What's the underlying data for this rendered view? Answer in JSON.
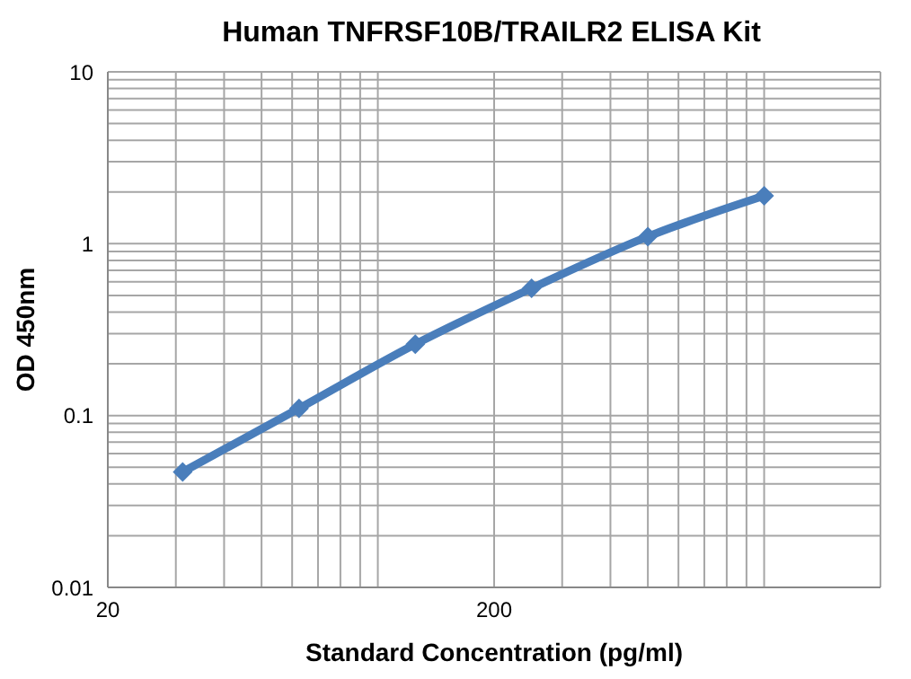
{
  "chart_data": {
    "type": "line",
    "title": "Human TNFRSF10B/TRAILR2 ELISA Kit",
    "xlabel": "Standard Concentration (pg/ml)",
    "ylabel": "OD 450nm",
    "x": [
      31.25,
      62.5,
      125,
      250,
      500,
      1000
    ],
    "series": [
      {
        "color": "#4a7ebb",
        "values": [
          0.047,
          0.11,
          0.26,
          0.55,
          1.1,
          1.9
        ]
      }
    ],
    "xlim": [
      20,
      2000
    ],
    "xticks": [
      20,
      200
    ],
    "ylim": [
      0.01,
      10
    ],
    "yticks": [
      0.01,
      0.1,
      1,
      10
    ],
    "log": "xy",
    "grid": true,
    "marker": "diamond",
    "line_style": "solid"
  }
}
